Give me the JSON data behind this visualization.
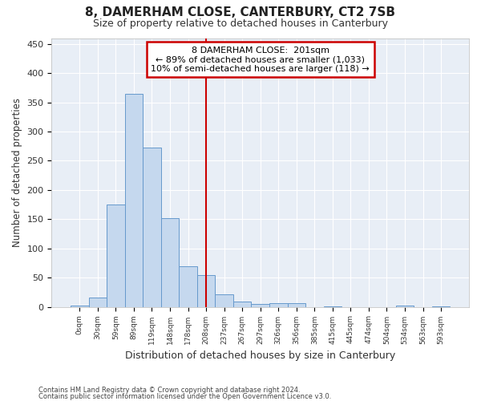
{
  "title": "8, DAMERHAM CLOSE, CANTERBURY, CT2 7SB",
  "subtitle": "Size of property relative to detached houses in Canterbury",
  "xlabel": "Distribution of detached houses by size in Canterbury",
  "ylabel": "Number of detached properties",
  "footnote1": "Contains HM Land Registry data © Crown copyright and database right 2024.",
  "footnote2": "Contains public sector information licensed under the Open Government Licence v3.0.",
  "bar_labels": [
    "0sqm",
    "30sqm",
    "59sqm",
    "89sqm",
    "119sqm",
    "148sqm",
    "178sqm",
    "208sqm",
    "237sqm",
    "267sqm",
    "297sqm",
    "326sqm",
    "356sqm",
    "385sqm",
    "415sqm",
    "445sqm",
    "474sqm",
    "504sqm",
    "534sqm",
    "563sqm",
    "593sqm"
  ],
  "bar_values": [
    2,
    16,
    175,
    365,
    272,
    152,
    70,
    54,
    22,
    9,
    5,
    6,
    6,
    0,
    1,
    0,
    0,
    0,
    2,
    0,
    1
  ],
  "bar_color": "#c5d8ee",
  "bar_edge_color": "#6699cc",
  "bg_color": "#e8eef6",
  "fig_bg_color": "#ffffff",
  "grid_color": "#ffffff",
  "property_line_x": 7.0,
  "annotation_line0": "8 DAMERHAM CLOSE:  201sqm",
  "annotation_line1": "← 89% of detached houses are smaller (1,033)",
  "annotation_line2": "10% of semi-detached houses are larger (118) →",
  "annotation_box_color": "#ffffff",
  "annotation_box_edge": "#cc0000",
  "vline_color": "#cc0000",
  "ylim": [
    0,
    460
  ],
  "yticks": [
    0,
    50,
    100,
    150,
    200,
    250,
    300,
    350,
    400,
    450
  ]
}
